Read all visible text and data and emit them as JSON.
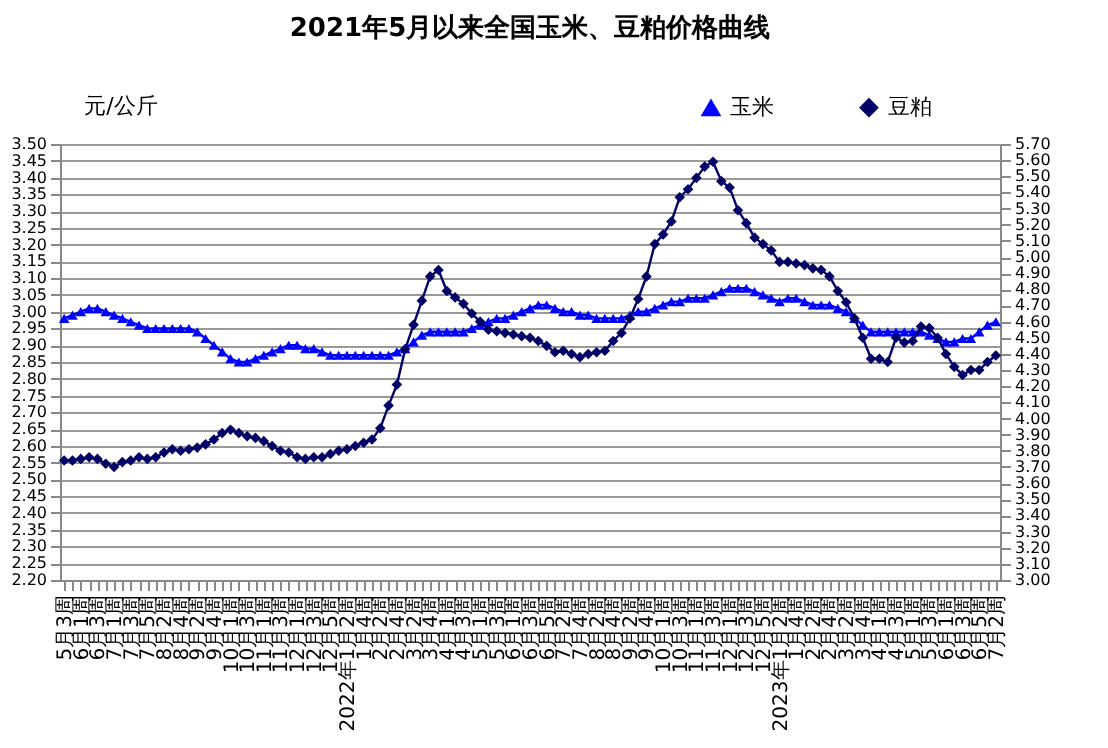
{
  "chart_data": {
    "type": "line",
    "title": "2021年5月以来全国玉米、豆粕价格曲线",
    "ylabel": "元/公斤",
    "categories": [
      "5月3周",
      null,
      "6月1周",
      null,
      "6月3周",
      null,
      "7月1周",
      null,
      "7月3周",
      null,
      "7月5周",
      null,
      "8月2周",
      null,
      "8月4周",
      null,
      "9月2周",
      null,
      "9月4周",
      null,
      "10月1周",
      null,
      "10月3周",
      null,
      "11月1周",
      null,
      "11月3周",
      null,
      "12月1周",
      null,
      "12月3周",
      null,
      "12月5周",
      null,
      "2022年1月2周",
      null,
      "1月4周",
      null,
      "2月2周",
      null,
      "2月4周",
      null,
      "3月2周",
      null,
      "3月4周",
      null,
      "4月1周",
      null,
      "4月3周",
      null,
      "5月1周",
      null,
      "5月3周",
      null,
      "6月1周",
      null,
      "6月3周",
      null,
      "6月5周",
      null,
      "7月2周",
      null,
      "7月4周",
      null,
      "8月2周",
      null,
      "8月4周",
      null,
      "9月2周",
      null,
      "9月4周",
      null,
      "10月1周",
      null,
      "10月3周",
      null,
      "11月1周",
      null,
      "11月3周",
      null,
      "12月1周",
      null,
      "12月3周",
      null,
      "12月5周",
      null,
      "2023年1月2周",
      null,
      "1月4周",
      null,
      "2月2周",
      null,
      "2月4周",
      null,
      "3月2周",
      null,
      "3月4周",
      null,
      "4月1周",
      null,
      "4月3周",
      null,
      "5月1周",
      null,
      "5月3周",
      null,
      "6月1周",
      null,
      "6月3周",
      null,
      "6月5周",
      null,
      "7月2周"
    ],
    "series": [
      {
        "name": "玉米",
        "color": "#0000ff",
        "marker": "triangle",
        "values": [
          2.98,
          2.99,
          3.0,
          3.01,
          3.01,
          3.0,
          2.99,
          2.98,
          2.97,
          2.96,
          2.95,
          2.95,
          2.95,
          2.95,
          2.95,
          2.95,
          2.94,
          2.92,
          2.9,
          2.88,
          2.86,
          2.85,
          2.85,
          2.86,
          2.87,
          2.88,
          2.89,
          2.9,
          2.9,
          2.89,
          2.89,
          2.88,
          2.87,
          2.87,
          2.87,
          2.87,
          2.87,
          2.87,
          2.87,
          2.87,
          2.88,
          2.89,
          2.91,
          2.93,
          2.94,
          2.94,
          2.94,
          2.94,
          2.94,
          2.95,
          2.96,
          2.97,
          2.98,
          2.98,
          2.99,
          3.0,
          3.01,
          3.02,
          3.02,
          3.01,
          3.0,
          3.0,
          2.99,
          2.99,
          2.98,
          2.98,
          2.98,
          2.98,
          2.99,
          3.0,
          3.0,
          3.01,
          3.02,
          3.03,
          3.03,
          3.04,
          3.04,
          3.04,
          3.05,
          3.06,
          3.07,
          3.07,
          3.07,
          3.06,
          3.05,
          3.04,
          3.03,
          3.04,
          3.04,
          3.03,
          3.02,
          3.02,
          3.02,
          3.01,
          3.0,
          2.98,
          2.96,
          2.94,
          2.94,
          2.94,
          2.94,
          2.94,
          2.94,
          2.94,
          2.93,
          2.92,
          2.91,
          2.91,
          2.92,
          2.92,
          2.94,
          2.96,
          2.97
        ]
      },
      {
        "name": "豆粕",
        "color": "#000066",
        "marker": "diamond",
        "axis": "y2",
        "values": [
          3.74,
          3.74,
          3.75,
          3.76,
          3.75,
          3.72,
          3.7,
          3.73,
          3.74,
          3.76,
          3.75,
          3.76,
          3.79,
          3.81,
          3.8,
          3.81,
          3.82,
          3.84,
          3.87,
          3.91,
          3.93,
          3.91,
          3.89,
          3.88,
          3.86,
          3.83,
          3.8,
          3.79,
          3.76,
          3.75,
          3.76,
          3.76,
          3.78,
          3.8,
          3.81,
          3.83,
          3.85,
          3.87,
          3.94,
          4.08,
          4.21,
          4.43,
          4.58,
          4.73,
          4.88,
          4.92,
          4.79,
          4.75,
          4.71,
          4.65,
          4.6,
          4.55,
          4.54,
          4.53,
          4.52,
          4.51,
          4.5,
          4.48,
          4.45,
          4.41,
          4.42,
          4.4,
          4.38,
          4.4,
          4.41,
          4.42,
          4.48,
          4.53,
          4.62,
          4.74,
          4.88,
          5.08,
          5.14,
          5.22,
          5.37,
          5.42,
          5.49,
          5.56,
          5.59,
          5.47,
          5.43,
          5.29,
          5.21,
          5.12,
          5.08,
          5.04,
          4.97,
          4.97,
          4.96,
          4.95,
          4.93,
          4.92,
          4.88,
          4.79,
          4.72,
          4.62,
          4.5,
          4.37,
          4.37,
          4.35,
          4.5,
          4.47,
          4.48,
          4.57,
          4.56,
          4.5,
          4.4,
          4.32,
          4.27,
          4.3,
          4.3,
          4.35,
          4.39
        ]
      }
    ],
    "ylim": [
      2.2,
      3.5
    ],
    "yticks": [
      {
        "value": 2.2,
        "label": "2.20"
      },
      2.25,
      {
        "value": 2.3,
        "label": "2.30"
      },
      2.35,
      {
        "value": 2.4,
        "label": "2.40"
      },
      2.45,
      {
        "value": 2.5,
        "label": "2.50"
      },
      2.55,
      {
        "value": 2.6,
        "label": "2.60"
      },
      2.65,
      {
        "value": 2.7,
        "label": "2.70"
      },
      2.75,
      {
        "value": 2.8,
        "label": "2.80"
      },
      2.85,
      {
        "value": 2.9,
        "label": "2.90"
      },
      2.95,
      {
        "value": 3.0,
        "label": "3.00"
      },
      3.05,
      {
        "value": 3.1,
        "label": "3.10"
      },
      3.15,
      {
        "value": 3.2,
        "label": "3.20"
      },
      3.25,
      {
        "value": 3.3,
        "label": "3.30"
      },
      3.35,
      {
        "value": 3.4,
        "label": "3.40"
      },
      3.45,
      {
        "value": 3.5,
        "label": "3.50"
      }
    ],
    "y2lim": [
      3.0,
      5.7
    ],
    "y2ticks": [
      {
        "value": 3.0,
        "label": "3.00"
      },
      {
        "value": 3.1,
        "label": "3.10"
      },
      {
        "value": 3.2,
        "label": "3.20"
      },
      {
        "value": 3.3,
        "label": "3.30"
      },
      {
        "value": 3.4,
        "label": "3.40"
      },
      {
        "value": 3.5,
        "label": "3.50"
      },
      {
        "value": 3.6,
        "label": "3.60"
      },
      {
        "value": 3.7,
        "label": "3.70"
      },
      {
        "value": 3.8,
        "label": "3.80"
      },
      {
        "value": 3.9,
        "label": "3.90"
      },
      {
        "value": 4.0,
        "label": "4.00"
      },
      {
        "value": 4.1,
        "label": "4.10"
      },
      {
        "value": 4.2,
        "label": "4.20"
      },
      {
        "value": 4.3,
        "label": "4.30"
      },
      {
        "value": 4.4,
        "label": "4.40"
      },
      {
        "value": 4.5,
        "label": "4.50"
      },
      {
        "value": 4.6,
        "label": "4.60"
      },
      {
        "value": 4.7,
        "label": "4.70"
      },
      {
        "value": 4.8,
        "label": "4.80"
      },
      {
        "value": 4.9,
        "label": "4.90"
      },
      {
        "value": 5.0,
        "label": "5.00"
      },
      {
        "value": 5.1,
        "label": "5.10"
      },
      {
        "value": 5.2,
        "label": "5.20"
      },
      {
        "value": 5.3,
        "label": "5.30"
      },
      {
        "value": 5.4,
        "label": "5.40"
      },
      {
        "value": 5.5,
        "label": "5.50"
      },
      {
        "value": 5.6,
        "label": "5.60"
      },
      {
        "value": 5.7,
        "label": "5.70"
      }
    ],
    "grid": "y",
    "legend": "top right",
    "line_style": "solid"
  }
}
